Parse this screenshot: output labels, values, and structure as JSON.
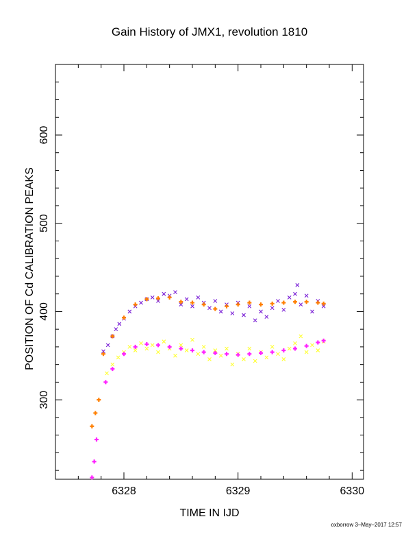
{
  "chart_data": {
    "type": "scatter",
    "title": "Gain History of JMX1, revolution 1810",
    "xlabel": "TIME IN IJD",
    "ylabel": "POSITION OF Cd CALIBRATION PEAKS",
    "xlim": [
      6327.4,
      6330.1
    ],
    "ylim": [
      210,
      680
    ],
    "x_ticks": [
      6328,
      6329,
      6330
    ],
    "y_ticks": [
      300,
      400,
      500,
      600
    ],
    "grid": false,
    "colors": {
      "upper_points": "#7a1fd6",
      "upper_fit": "#ff7f00",
      "lower_points": "#ffff33",
      "lower_fit": "#ff22ff"
    },
    "series": [
      {
        "marker": "x",
        "color": "#7a1fd6",
        "points": [
          [
            6327.82,
            355
          ],
          [
            6327.86,
            362
          ],
          [
            6327.9,
            372
          ],
          [
            6327.93,
            380
          ],
          [
            6327.96,
            386
          ],
          [
            6328.0,
            392
          ],
          [
            6328.05,
            400
          ],
          [
            6328.1,
            406
          ],
          [
            6328.15,
            410
          ],
          [
            6328.2,
            414
          ],
          [
            6328.25,
            416
          ],
          [
            6328.3,
            412
          ],
          [
            6328.35,
            420
          ],
          [
            6328.4,
            418
          ],
          [
            6328.45,
            422
          ],
          [
            6328.5,
            408
          ],
          [
            6328.55,
            414
          ],
          [
            6328.6,
            406
          ],
          [
            6328.65,
            416
          ],
          [
            6328.7,
            410
          ],
          [
            6328.75,
            404
          ],
          [
            6328.8,
            412
          ],
          [
            6328.85,
            400
          ],
          [
            6328.9,
            408
          ],
          [
            6328.95,
            398
          ],
          [
            6329.0,
            410
          ],
          [
            6329.05,
            396
          ],
          [
            6329.1,
            406
          ],
          [
            6329.15,
            390
          ],
          [
            6329.2,
            400
          ],
          [
            6329.25,
            394
          ],
          [
            6329.3,
            404
          ],
          [
            6329.35,
            412
          ],
          [
            6329.4,
            402
          ],
          [
            6329.45,
            416
          ],
          [
            6329.5,
            420
          ],
          [
            6329.52,
            430
          ],
          [
            6329.55,
            408
          ],
          [
            6329.6,
            418
          ],
          [
            6329.65,
            400
          ],
          [
            6329.7,
            412
          ],
          [
            6329.75,
            406
          ]
        ]
      },
      {
        "marker": "+",
        "color": "#ff7f00",
        "points": [
          [
            6327.72,
            270
          ],
          [
            6327.75,
            285
          ],
          [
            6327.78,
            300
          ],
          [
            6327.82,
            352
          ],
          [
            6327.9,
            372
          ],
          [
            6328.0,
            393
          ],
          [
            6328.1,
            408
          ],
          [
            6328.2,
            414
          ],
          [
            6328.3,
            415
          ],
          [
            6328.4,
            416
          ],
          [
            6328.5,
            411
          ],
          [
            6328.6,
            410
          ],
          [
            6328.7,
            408
          ],
          [
            6328.8,
            403
          ],
          [
            6328.9,
            406
          ],
          [
            6329.0,
            408
          ],
          [
            6329.1,
            410
          ],
          [
            6329.2,
            408
          ],
          [
            6329.3,
            409
          ],
          [
            6329.4,
            410
          ],
          [
            6329.5,
            411
          ],
          [
            6329.6,
            411
          ],
          [
            6329.7,
            410
          ],
          [
            6329.75,
            409
          ]
        ]
      },
      {
        "marker": "x",
        "color": "#ffff33",
        "points": [
          [
            6327.85,
            330
          ],
          [
            6327.9,
            340
          ],
          [
            6327.95,
            348
          ],
          [
            6328.0,
            354
          ],
          [
            6328.05,
            360
          ],
          [
            6328.1,
            356
          ],
          [
            6328.15,
            364
          ],
          [
            6328.2,
            358
          ],
          [
            6328.25,
            362
          ],
          [
            6328.3,
            354
          ],
          [
            6328.35,
            366
          ],
          [
            6328.4,
            358
          ],
          [
            6328.45,
            350
          ],
          [
            6328.5,
            362
          ],
          [
            6328.55,
            356
          ],
          [
            6328.6,
            368
          ],
          [
            6328.65,
            352
          ],
          [
            6328.7,
            360
          ],
          [
            6328.75,
            346
          ],
          [
            6328.8,
            356
          ],
          [
            6328.85,
            350
          ],
          [
            6328.9,
            358
          ],
          [
            6328.95,
            340
          ],
          [
            6329.0,
            352
          ],
          [
            6329.05,
            346
          ],
          [
            6329.1,
            358
          ],
          [
            6329.15,
            344
          ],
          [
            6329.2,
            354
          ],
          [
            6329.25,
            348
          ],
          [
            6329.3,
            360
          ],
          [
            6329.35,
            352
          ],
          [
            6329.4,
            346
          ],
          [
            6329.45,
            358
          ],
          [
            6329.5,
            364
          ],
          [
            6329.55,
            372
          ],
          [
            6329.6,
            354
          ],
          [
            6329.65,
            362
          ],
          [
            6329.7,
            356
          ],
          [
            6329.75,
            366
          ]
        ]
      },
      {
        "marker": "+",
        "color": "#ff22ff",
        "points": [
          [
            6327.72,
            212
          ],
          [
            6327.74,
            230
          ],
          [
            6327.76,
            255
          ],
          [
            6327.84,
            320
          ],
          [
            6327.9,
            335
          ],
          [
            6328.0,
            352
          ],
          [
            6328.1,
            360
          ],
          [
            6328.2,
            363
          ],
          [
            6328.3,
            362
          ],
          [
            6328.4,
            360
          ],
          [
            6328.5,
            358
          ],
          [
            6328.6,
            356
          ],
          [
            6328.7,
            354
          ],
          [
            6328.8,
            353
          ],
          [
            6328.9,
            352
          ],
          [
            6329.0,
            351
          ],
          [
            6329.1,
            352
          ],
          [
            6329.2,
            353
          ],
          [
            6329.3,
            354
          ],
          [
            6329.4,
            356
          ],
          [
            6329.5,
            358
          ],
          [
            6329.6,
            361
          ],
          [
            6329.7,
            365
          ],
          [
            6329.75,
            367
          ]
        ]
      }
    ]
  },
  "footer": {
    "stamp": "oxborrow 3–May–2017 12:57"
  }
}
